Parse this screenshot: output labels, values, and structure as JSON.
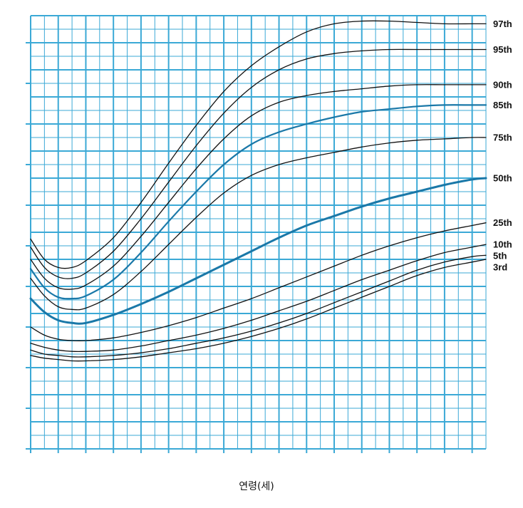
{
  "chart_data": {
    "type": "line",
    "title": "",
    "xlabel": "연령(세)",
    "ylabel": "",
    "xlim": [
      0,
      33
    ],
    "ylim": [
      0,
      32
    ],
    "grid": true,
    "series": [
      {
        "name": "97th",
        "x": [
          0,
          1,
          2,
          3,
          4,
          6,
          8,
          10,
          12,
          14,
          16,
          18,
          20,
          22,
          24,
          26,
          28,
          30,
          32,
          33
        ],
        "y": [
          15.5,
          14.0,
          13.4,
          13.4,
          13.9,
          15.6,
          18.2,
          21.1,
          23.9,
          26.4,
          28.3,
          29.7,
          30.8,
          31.4,
          31.6,
          31.6,
          31.5,
          31.4,
          31.4,
          31.4
        ]
      },
      {
        "name": "95th",
        "x": [
          0,
          1,
          2,
          3,
          4,
          6,
          8,
          10,
          12,
          14,
          16,
          18,
          20,
          22,
          24,
          26,
          28,
          30,
          32,
          33
        ],
        "y": [
          14.9,
          13.4,
          12.7,
          12.6,
          13.0,
          14.6,
          17.0,
          19.7,
          22.4,
          24.8,
          26.7,
          28.0,
          28.8,
          29.2,
          29.4,
          29.5,
          29.5,
          29.5,
          29.5,
          29.5
        ]
      },
      {
        "name": "90th",
        "x": [
          0,
          1,
          2,
          3,
          4,
          6,
          8,
          10,
          12,
          14,
          16,
          18,
          20,
          22,
          24,
          26,
          28,
          30,
          32,
          33
        ],
        "y": [
          14.0,
          12.6,
          11.9,
          11.8,
          12.1,
          13.5,
          15.7,
          18.2,
          20.7,
          22.9,
          24.6,
          25.6,
          26.1,
          26.4,
          26.6,
          26.8,
          26.9,
          26.9,
          26.9,
          26.9
        ]
      },
      {
        "name": "85th",
        "x": [
          0,
          1,
          2,
          3,
          4,
          6,
          8,
          10,
          12,
          14,
          16,
          18,
          20,
          22,
          24,
          26,
          28,
          30,
          32,
          33
        ],
        "y": [
          13.3,
          11.9,
          11.2,
          11.1,
          11.3,
          12.5,
          14.5,
          16.8,
          19.0,
          21.0,
          22.5,
          23.4,
          24.0,
          24.5,
          24.9,
          25.1,
          25.3,
          25.4,
          25.4,
          25.4
        ]
      },
      {
        "name": "75th",
        "x": [
          0,
          1,
          2,
          3,
          4,
          6,
          8,
          10,
          12,
          14,
          16,
          18,
          20,
          22,
          24,
          26,
          28,
          30,
          32,
          33
        ],
        "y": [
          12.6,
          11.3,
          10.5,
          10.3,
          10.4,
          11.4,
          13.1,
          15.1,
          17.1,
          18.9,
          20.2,
          21.0,
          21.5,
          21.9,
          22.3,
          22.6,
          22.8,
          22.9,
          23.0,
          23.0
        ]
      },
      {
        "name": "50th",
        "x": [
          0,
          1,
          2,
          3,
          4,
          6,
          8,
          10,
          12,
          14,
          16,
          18,
          20,
          22,
          24,
          26,
          28,
          30,
          32,
          33
        ],
        "y": [
          11.1,
          10.1,
          9.5,
          9.3,
          9.3,
          9.9,
          10.7,
          11.6,
          12.6,
          13.6,
          14.6,
          15.6,
          16.5,
          17.2,
          17.9,
          18.5,
          19.0,
          19.5,
          19.9,
          20.0
        ]
      },
      {
        "name": "25th",
        "x": [
          0,
          1,
          2,
          3,
          4,
          6,
          8,
          10,
          12,
          14,
          16,
          18,
          20,
          22,
          24,
          26,
          28,
          30,
          32,
          33
        ],
        "y": [
          9.0,
          8.4,
          8.1,
          8.0,
          8.0,
          8.2,
          8.6,
          9.1,
          9.7,
          10.4,
          11.1,
          11.9,
          12.7,
          13.5,
          14.3,
          15.0,
          15.6,
          16.1,
          16.5,
          16.7
        ]
      },
      {
        "name": "10th",
        "x": [
          0,
          1,
          2,
          3,
          4,
          6,
          8,
          10,
          12,
          14,
          16,
          18,
          20,
          22,
          24,
          26,
          28,
          30,
          32,
          33
        ],
        "y": [
          7.8,
          7.5,
          7.3,
          7.2,
          7.2,
          7.3,
          7.6,
          8.0,
          8.4,
          8.9,
          9.5,
          10.2,
          10.9,
          11.7,
          12.5,
          13.2,
          13.9,
          14.5,
          14.9,
          15.1
        ]
      },
      {
        "name": "5th",
        "x": [
          0,
          1,
          2,
          3,
          4,
          6,
          8,
          10,
          12,
          14,
          16,
          18,
          20,
          22,
          24,
          26,
          28,
          30,
          32,
          33
        ],
        "y": [
          7.3,
          7.0,
          6.9,
          6.8,
          6.8,
          6.9,
          7.1,
          7.4,
          7.8,
          8.2,
          8.7,
          9.3,
          10.0,
          10.8,
          11.6,
          12.4,
          13.2,
          13.8,
          14.2,
          14.3
        ]
      },
      {
        "name": "3rd",
        "x": [
          0,
          1,
          2,
          3,
          4,
          6,
          8,
          10,
          12,
          14,
          16,
          18,
          20,
          22,
          24,
          26,
          28,
          30,
          32,
          33
        ],
        "y": [
          6.9,
          6.7,
          6.6,
          6.5,
          6.5,
          6.6,
          6.8,
          7.1,
          7.4,
          7.8,
          8.3,
          8.9,
          9.6,
          10.4,
          11.2,
          12.0,
          12.8,
          13.4,
          13.8,
          14.0
        ]
      }
    ],
    "highlighted_series": [
      "85th",
      "50th"
    ],
    "colors": {
      "grid": "#3ba9d6",
      "line": "#111111",
      "highlight": "#1a78a8",
      "label": "#111111"
    }
  }
}
